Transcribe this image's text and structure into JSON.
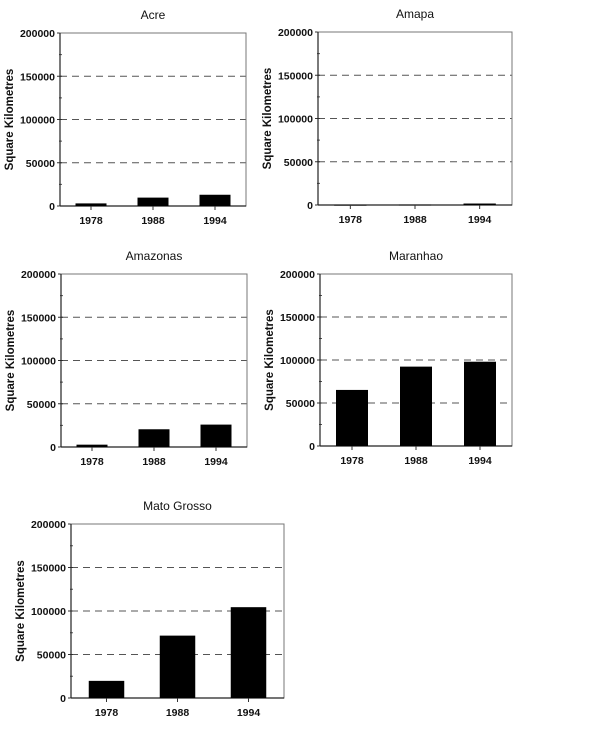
{
  "chart_data": [
    {
      "type": "bar",
      "title": "Acre",
      "ylabel": "Square Kilometres",
      "xlabel": "",
      "categories": [
        "1978",
        "1988",
        "1994"
      ],
      "values": [
        3000,
        9700,
        13000
      ],
      "ylim": [
        0,
        200000
      ],
      "yticks": [
        "0",
        "50000",
        "100000",
        "150000",
        "200000"
      ],
      "grid": "dashed horizontal",
      "bar_color": "#000000"
    },
    {
      "type": "bar",
      "title": "Amapa",
      "ylabel": "Square Kilometres",
      "xlabel": "",
      "categories": [
        "1978",
        "1988",
        "1994"
      ],
      "values": [
        200,
        400,
        1700
      ],
      "ylim": [
        0,
        200000
      ],
      "yticks": [
        "0",
        "50000",
        "100000",
        "150000",
        "200000"
      ],
      "grid": "dashed horizontal",
      "bar_color": "#000000"
    },
    {
      "type": "bar",
      "title": "Amazonas",
      "ylabel": "Square Kilometres",
      "xlabel": "",
      "categories": [
        "1978",
        "1988",
        "1994"
      ],
      "values": [
        2700,
        20500,
        25900
      ],
      "ylim": [
        0,
        200000
      ],
      "yticks": [
        "0",
        "50000",
        "100000",
        "150000",
        "200000"
      ],
      "grid": "dashed horizontal",
      "bar_color": "#000000"
    },
    {
      "type": "bar",
      "title": "Maranhao",
      "ylabel": "Square Kilometres",
      "xlabel": "",
      "categories": [
        "1978",
        "1988",
        "1994"
      ],
      "values": [
        65200,
        92300,
        98000
      ],
      "ylim": [
        0,
        200000
      ],
      "yticks": [
        "0",
        "50000",
        "100000",
        "150000",
        "200000"
      ],
      "grid": "dashed horizontal",
      "bar_color": "#000000"
    },
    {
      "type": "bar",
      "title": "Mato Grosso",
      "ylabel": "Square Kilometres",
      "xlabel": "",
      "categories": [
        "1978",
        "1988",
        "1994"
      ],
      "values": [
        19700,
        71700,
        104400
      ],
      "ylim": [
        0,
        200000
      ],
      "yticks": [
        "0",
        "50000",
        "100000",
        "150000",
        "200000"
      ],
      "grid": "dashed horizontal",
      "bar_color": "#000000"
    }
  ]
}
